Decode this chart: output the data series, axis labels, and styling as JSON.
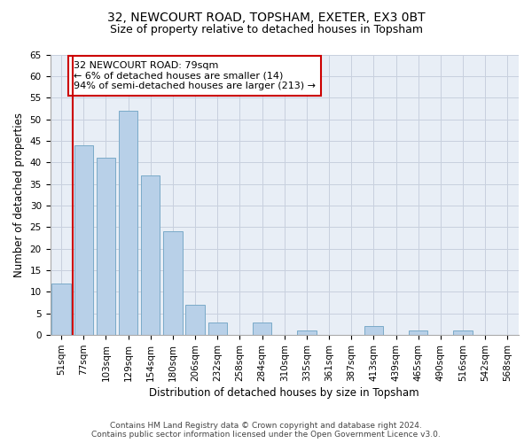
{
  "title1": "32, NEWCOURT ROAD, TOPSHAM, EXETER, EX3 0BT",
  "title2": "Size of property relative to detached houses in Topsham",
  "xlabel": "Distribution of detached houses by size in Topsham",
  "ylabel": "Number of detached properties",
  "categories": [
    "51sqm",
    "77sqm",
    "103sqm",
    "129sqm",
    "154sqm",
    "180sqm",
    "206sqm",
    "232sqm",
    "258sqm",
    "284sqm",
    "310sqm",
    "335sqm",
    "361sqm",
    "387sqm",
    "413sqm",
    "439sqm",
    "465sqm",
    "490sqm",
    "516sqm",
    "542sqm",
    "568sqm"
  ],
  "values": [
    12,
    44,
    41,
    52,
    37,
    24,
    7,
    3,
    0,
    3,
    0,
    1,
    0,
    0,
    2,
    0,
    1,
    0,
    1,
    0,
    0
  ],
  "bar_color": "#b8d0e8",
  "bar_edge_color": "#7aaac8",
  "vline_x": 0.5,
  "vline_color": "#cc0000",
  "annotation_line1": "32 NEWCOURT ROAD: 79sqm",
  "annotation_line2": "← 6% of detached houses are smaller (14)",
  "annotation_line3": "94% of semi-detached houses are larger (213) →",
  "annotation_box_color": "#ffffff",
  "annotation_box_edge_color": "#cc0000",
  "ylim": [
    0,
    65
  ],
  "yticks": [
    0,
    5,
    10,
    15,
    20,
    25,
    30,
    35,
    40,
    45,
    50,
    55,
    60,
    65
  ],
  "grid_color": "#c8d0de",
  "bg_color": "#e8eef6",
  "footer1": "Contains HM Land Registry data © Crown copyright and database right 2024.",
  "footer2": "Contains public sector information licensed under the Open Government Licence v3.0.",
  "title1_fontsize": 10,
  "title2_fontsize": 9,
  "xlabel_fontsize": 8.5,
  "ylabel_fontsize": 8.5,
  "tick_fontsize": 7.5,
  "annotation_fontsize": 8,
  "footer_fontsize": 6.5
}
